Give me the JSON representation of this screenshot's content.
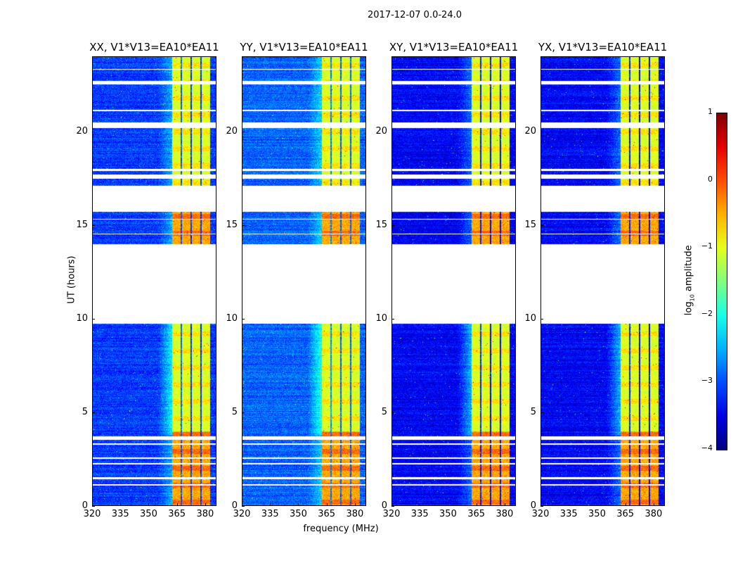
{
  "chart_data": {
    "type": "heatmap",
    "title": "2017-12-07 0.0-24.0",
    "xlabel": "frequency (MHz)",
    "ylabel": "UT (hours)",
    "xlim": [
      320,
      386
    ],
    "ylim": [
      0,
      24
    ],
    "xticks": [
      "320",
      "335",
      "350",
      "365",
      "380"
    ],
    "xtick_values": [
      320,
      335,
      350,
      365,
      380
    ],
    "yticks": [
      "0",
      "5",
      "10",
      "15",
      "20"
    ],
    "ytick_values": [
      0,
      5,
      10,
      15,
      20
    ],
    "panels": [
      {
        "title": "XX, V1*V13=EA10*EA11",
        "level": -3.1
      },
      {
        "title": "YY, V1*V13=EA10*EA11",
        "level": -2.9
      },
      {
        "title": "XY, V1*V13=EA10*EA11",
        "level": -3.4
      },
      {
        "title": "YX, V1*V13=EA10*EA11",
        "level": -3.4
      }
    ],
    "flagged_hours": [
      [
        0.0,
        0.05
      ],
      [
        1.1,
        1.2
      ],
      [
        1.45,
        1.55
      ],
      [
        2.25,
        2.32
      ],
      [
        2.55,
        2.62
      ],
      [
        3.3,
        3.35
      ],
      [
        3.55,
        3.75
      ],
      [
        9.75,
        14.0
      ],
      [
        14.5,
        14.55
      ],
      [
        15.3,
        15.35
      ],
      [
        15.7,
        17.1
      ],
      [
        17.5,
        17.7
      ],
      [
        17.9,
        18.0
      ],
      [
        20.2,
        20.5
      ],
      [
        21.1,
        21.15
      ],
      [
        22.5,
        22.7
      ],
      [
        23.3,
        23.35
      ]
    ],
    "rfi_channels_MHz": [
      [
        362.3,
        366.8
      ],
      [
        367.6,
        372.0
      ],
      [
        372.8,
        377.2
      ],
      [
        378.0,
        382.4
      ]
    ],
    "colorbar": {
      "label": "log10 amplitude",
      "ticks": [
        "1",
        "0",
        "−1",
        "−2",
        "−3",
        "−4"
      ],
      "tick_values": [
        1,
        0,
        -1,
        -2,
        -3,
        -4
      ],
      "range": [
        -4,
        1
      ],
      "colormap": "jet"
    }
  }
}
